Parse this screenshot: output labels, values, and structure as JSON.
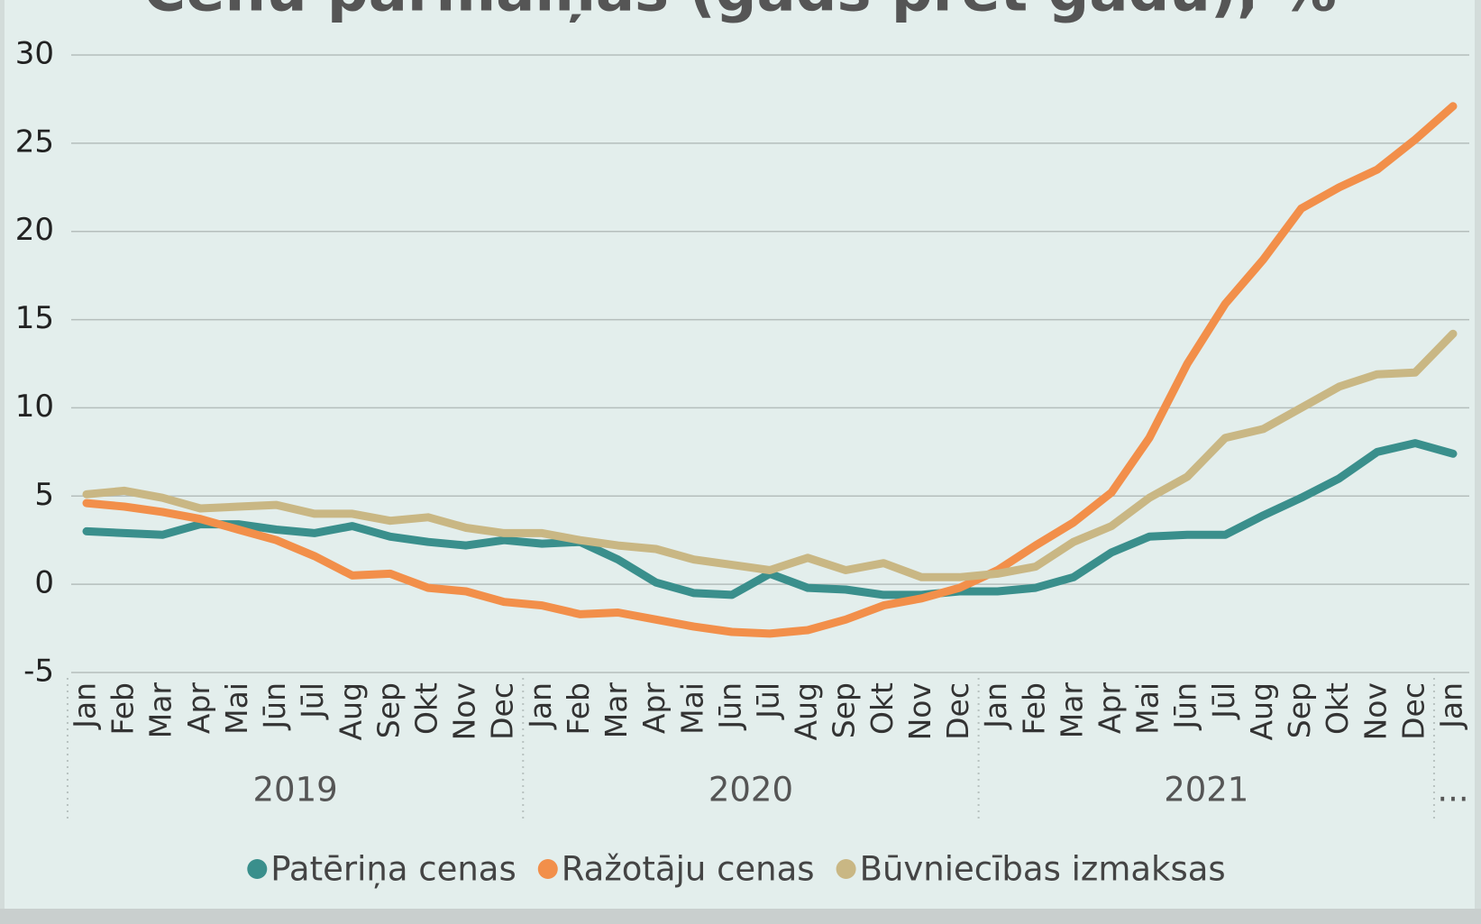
{
  "chart_data": {
    "type": "line",
    "title": "Cenu pārmaiņas (gads pret gadu), %",
    "categories": [
      "Jan",
      "Feb",
      "Mar",
      "Apr",
      "Mai",
      "Jūn",
      "Jūl",
      "Aug",
      "Sep",
      "Okt",
      "Nov",
      "Dec",
      "Jan",
      "Feb",
      "Mar",
      "Apr",
      "Mai",
      "Jūn",
      "Jūl",
      "Aug",
      "Sep",
      "Okt",
      "Nov",
      "Dec",
      "Jan",
      "Feb",
      "Mar",
      "Apr",
      "Mai",
      "Jūn",
      "Jūl",
      "Aug",
      "Sep",
      "Okt",
      "Nov",
      "Dec",
      "Jan"
    ],
    "year_labels": [
      "2019",
      "2020",
      "2021",
      "..."
    ],
    "ylim": [
      -5,
      30
    ],
    "yticks": [
      -5,
      0,
      5,
      10,
      15,
      20,
      25,
      30
    ],
    "grid": true,
    "series": [
      {
        "name": "Patēriņa cenas",
        "color": "#3a8f8c",
        "values": [
          3.0,
          2.9,
          2.8,
          3.4,
          3.4,
          3.1,
          2.9,
          3.3,
          2.7,
          2.4,
          2.2,
          2.5,
          2.3,
          2.4,
          1.4,
          0.1,
          -0.5,
          -0.6,
          0.6,
          -0.2,
          -0.3,
          -0.6,
          -0.6,
          -0.4,
          -0.4,
          -0.2,
          0.4,
          1.8,
          2.7,
          2.8,
          2.8,
          3.9,
          4.9,
          6.0,
          7.5,
          8.0,
          7.4
        ]
      },
      {
        "name": "Ražotāju cenas",
        "color": "#f28f4a",
        "values": [
          4.6,
          4.4,
          4.1,
          3.7,
          3.1,
          2.5,
          1.6,
          0.5,
          0.6,
          -0.2,
          -0.4,
          -1.0,
          -1.2,
          -1.7,
          -1.6,
          -2.0,
          -2.4,
          -2.7,
          -2.8,
          -2.6,
          -2.0,
          -1.2,
          -0.8,
          -0.2,
          0.8,
          2.2,
          3.5,
          5.2,
          8.3,
          12.5,
          15.9,
          18.4,
          21.3,
          22.5,
          23.5,
          25.2,
          27.1
        ]
      },
      {
        "name": "Būvniecības izmaksas",
        "color": "#c9b784",
        "values": [
          5.1,
          5.3,
          4.9,
          4.3,
          4.4,
          4.5,
          4.0,
          4.0,
          3.6,
          3.8,
          3.2,
          2.9,
          2.9,
          2.5,
          2.2,
          2.0,
          1.4,
          1.1,
          0.8,
          1.5,
          0.8,
          1.2,
          0.4,
          0.4,
          0.6,
          1.0,
          2.4,
          3.3,
          4.9,
          6.1,
          8.3,
          8.8,
          10.0,
          11.2,
          11.9,
          12.0,
          14.2
        ]
      }
    ]
  }
}
